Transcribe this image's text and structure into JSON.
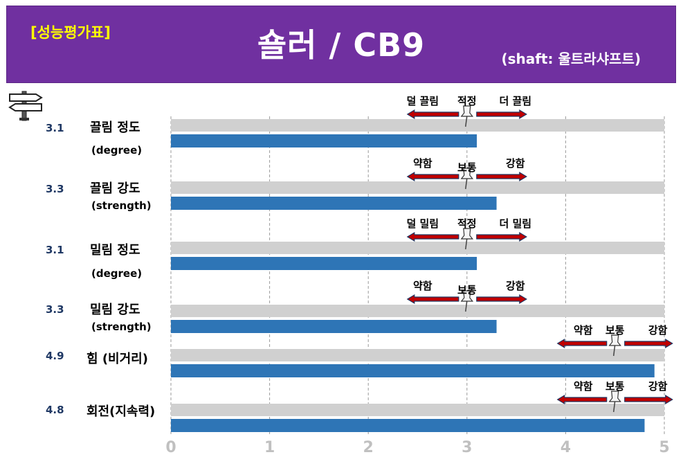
{
  "header": {
    "tag": "[성능평가표]",
    "title": "숄러 / CB9",
    "subtitle": "(shaft: 울트라샤프트)",
    "background_color": "#7030a0",
    "tag_color": "#ffff00"
  },
  "chart_data": {
    "type": "bar",
    "orientation": "horizontal",
    "xlim": [
      0,
      5
    ],
    "x_ticks": [
      "0",
      "1",
      "2",
      "3",
      "4",
      "5"
    ],
    "grid": "vertical dashed",
    "bar_color": "#2e75b6",
    "track_color": "#d0d0d0",
    "arrow_color": "#c00000",
    "rows": [
      {
        "score": "3.1",
        "value": 3.1,
        "label": "끌림 정도",
        "unit": "(degree)",
        "scale": {
          "left": "덜 끌림",
          "mid": "적정",
          "right": "더 끌림",
          "center": 3
        }
      },
      {
        "score": "3.3",
        "value": 3.3,
        "label": "끌림 강도",
        "unit": "(strength)",
        "scale": {
          "left": "약함",
          "mid": "보통",
          "right": "강함",
          "center": 3
        }
      },
      {
        "score": "3.1",
        "value": 3.1,
        "label": "밀림 정도",
        "unit": "(degree)",
        "scale": {
          "left": "덜 밀림",
          "mid": "적정",
          "right": "더 밀림",
          "center": 3
        }
      },
      {
        "score": "3.3",
        "value": 3.3,
        "label": "밀림 강도",
        "unit": "(strength)",
        "scale": {
          "left": "약함",
          "mid": "보통",
          "right": "강함",
          "center": 3
        }
      },
      {
        "score": "4.9",
        "value": 4.9,
        "label": "힘 (비거리)",
        "unit": "",
        "scale": {
          "left": "약함",
          "mid": "보통",
          "right": "강함",
          "center": 4.5
        }
      },
      {
        "score": "4.8",
        "value": 4.8,
        "label": "회전(지속력)",
        "unit": "",
        "scale": {
          "left": "약함",
          "mid": "보통",
          "right": "강함",
          "center": 4.5
        }
      }
    ]
  }
}
